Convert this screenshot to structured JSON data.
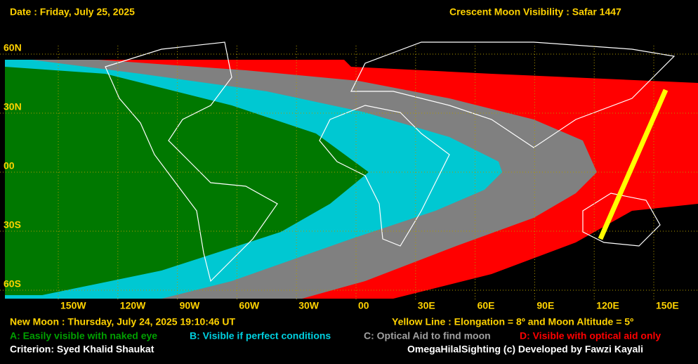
{
  "header": {
    "date": "Date : Friday, July 25, 2025",
    "title": "Crescent Moon Visibility : Safar  1447"
  },
  "map": {
    "lat_labels": [
      "60N",
      "30N",
      "00",
      "30S",
      "60S"
    ],
    "lon_labels": [
      "150W",
      "120W",
      "90W",
      "60W",
      "30W",
      "00",
      "30E",
      "60E",
      "90E",
      "120E",
      "150E"
    ]
  },
  "footer": {
    "new_moon": "New Moon : Thursday, July 24, 2025  19:10:46  UT",
    "yellow_line": "Yellow Line : Elongation = 8º  and Moon Altitude = 5º",
    "legend": [
      "A: Easily visible with naked eye",
      "B: Visible if perfect conditions",
      "C: Optical Aid to find moon",
      "D: Visible with optical aid only"
    ],
    "criterion": "Criterion: Syed Khalid Shaukat",
    "credit": "OmegaHilalSighting  (c)  Developed by Fawzi Kayali"
  }
}
